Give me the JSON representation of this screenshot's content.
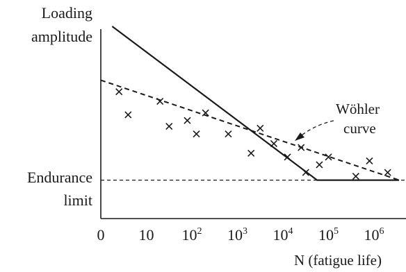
{
  "chart_data": {
    "type": "line",
    "x_scale": "log",
    "y_axis_label": [
      "Loading",
      "amplitude"
    ],
    "x_axis_label": "N (fatigue life)",
    "x_ticks": [
      {
        "base": "0",
        "exp": ""
      },
      {
        "base": "10",
        "exp": ""
      },
      {
        "base": "10",
        "exp": "2"
      },
      {
        "base": "10",
        "exp": "3"
      },
      {
        "base": "10",
        "exp": "4"
      },
      {
        "base": "10",
        "exp": "5"
      },
      {
        "base": "10",
        "exp": "6"
      }
    ],
    "endurance_limit_label": [
      "Endurance",
      "limit"
    ],
    "endurance_limit_level": 0.2,
    "annotation": [
      "Wöhler",
      "curve"
    ],
    "series": [
      {
        "style": "solid",
        "points": [
          [
            0.25,
            1.0
          ],
          [
            4.75,
            0.2
          ],
          [
            6.55,
            0.2
          ]
        ]
      },
      {
        "style": "dashed",
        "points": [
          [
            0,
            0.72
          ],
          [
            6.55,
            0.2
          ]
        ]
      }
    ],
    "scatter": [
      [
        0.4,
        0.66
      ],
      [
        0.6,
        0.54
      ],
      [
        1.3,
        0.61
      ],
      [
        1.5,
        0.48
      ],
      [
        1.9,
        0.51
      ],
      [
        2.1,
        0.44
      ],
      [
        2.3,
        0.55
      ],
      [
        2.8,
        0.44
      ],
      [
        3.3,
        0.34
      ],
      [
        3.5,
        0.47
      ],
      [
        3.8,
        0.39
      ],
      [
        4.1,
        0.32
      ],
      [
        4.4,
        0.37
      ],
      [
        4.5,
        0.24
      ],
      [
        4.8,
        0.28
      ],
      [
        5.0,
        0.32
      ],
      [
        5.6,
        0.22
      ],
      [
        5.9,
        0.3
      ],
      [
        6.3,
        0.24
      ]
    ],
    "ylim": [
      0,
      1
    ],
    "grid": false
  }
}
